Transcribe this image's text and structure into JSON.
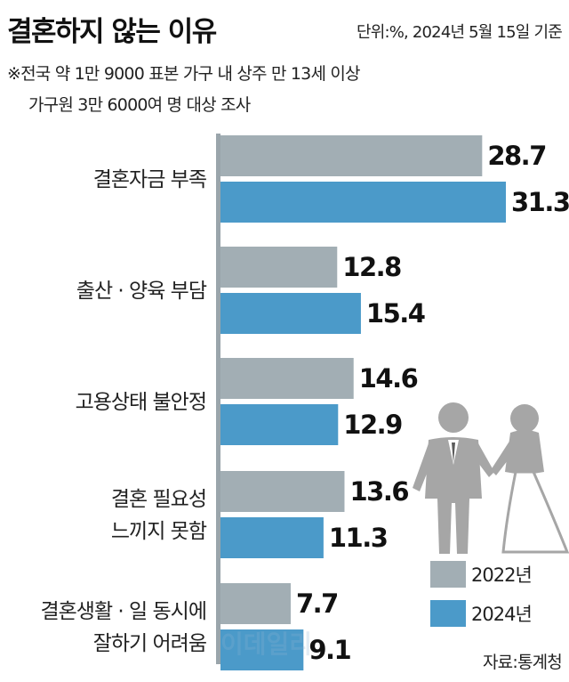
{
  "header": {
    "title": "결혼하지 않는 이유",
    "unit": "단위:%, 2024년 5월 15일 기준",
    "note_line1": "※전국 약 1만 9000 표본 가구 내 상주 만 13세 이상",
    "note_line2": "가구원 3만 6000여 명 대상 조사"
  },
  "source": "자료:통계청",
  "watermark": "이데일리",
  "colors": {
    "2022": "#a2aeb4",
    "2024": "#4b9ac9",
    "axis": "#9aa5ab",
    "icon": "#a6a6a6"
  },
  "icons": [
    "groom-icon",
    "bride-icon"
  ],
  "chart_data": {
    "type": "bar",
    "orientation": "horizontal",
    "categories": [
      [
        "결혼자금 부족"
      ],
      [
        "출산 · 양육 부담"
      ],
      [
        "고용상태 불안정"
      ],
      [
        "결혼  필요성",
        "느끼지 못함"
      ],
      [
        "결혼생활 · 일 동시에",
        "잘하기 어려움"
      ]
    ],
    "series": [
      {
        "name": "2022년",
        "values": [
          28.7,
          12.8,
          14.6,
          13.6,
          7.7
        ]
      },
      {
        "name": "2024년",
        "values": [
          31.3,
          15.4,
          12.9,
          11.3,
          9.1
        ]
      }
    ],
    "value_labels": [
      [
        "28.7",
        "12.8",
        "14.6",
        "13.6",
        "7.7"
      ],
      [
        "31.3",
        "15.4",
        "12.9",
        "11.3",
        "9.1"
      ]
    ],
    "xlim": [
      0,
      31.3
    ],
    "legend": "bottom-right",
    "grid": false
  }
}
